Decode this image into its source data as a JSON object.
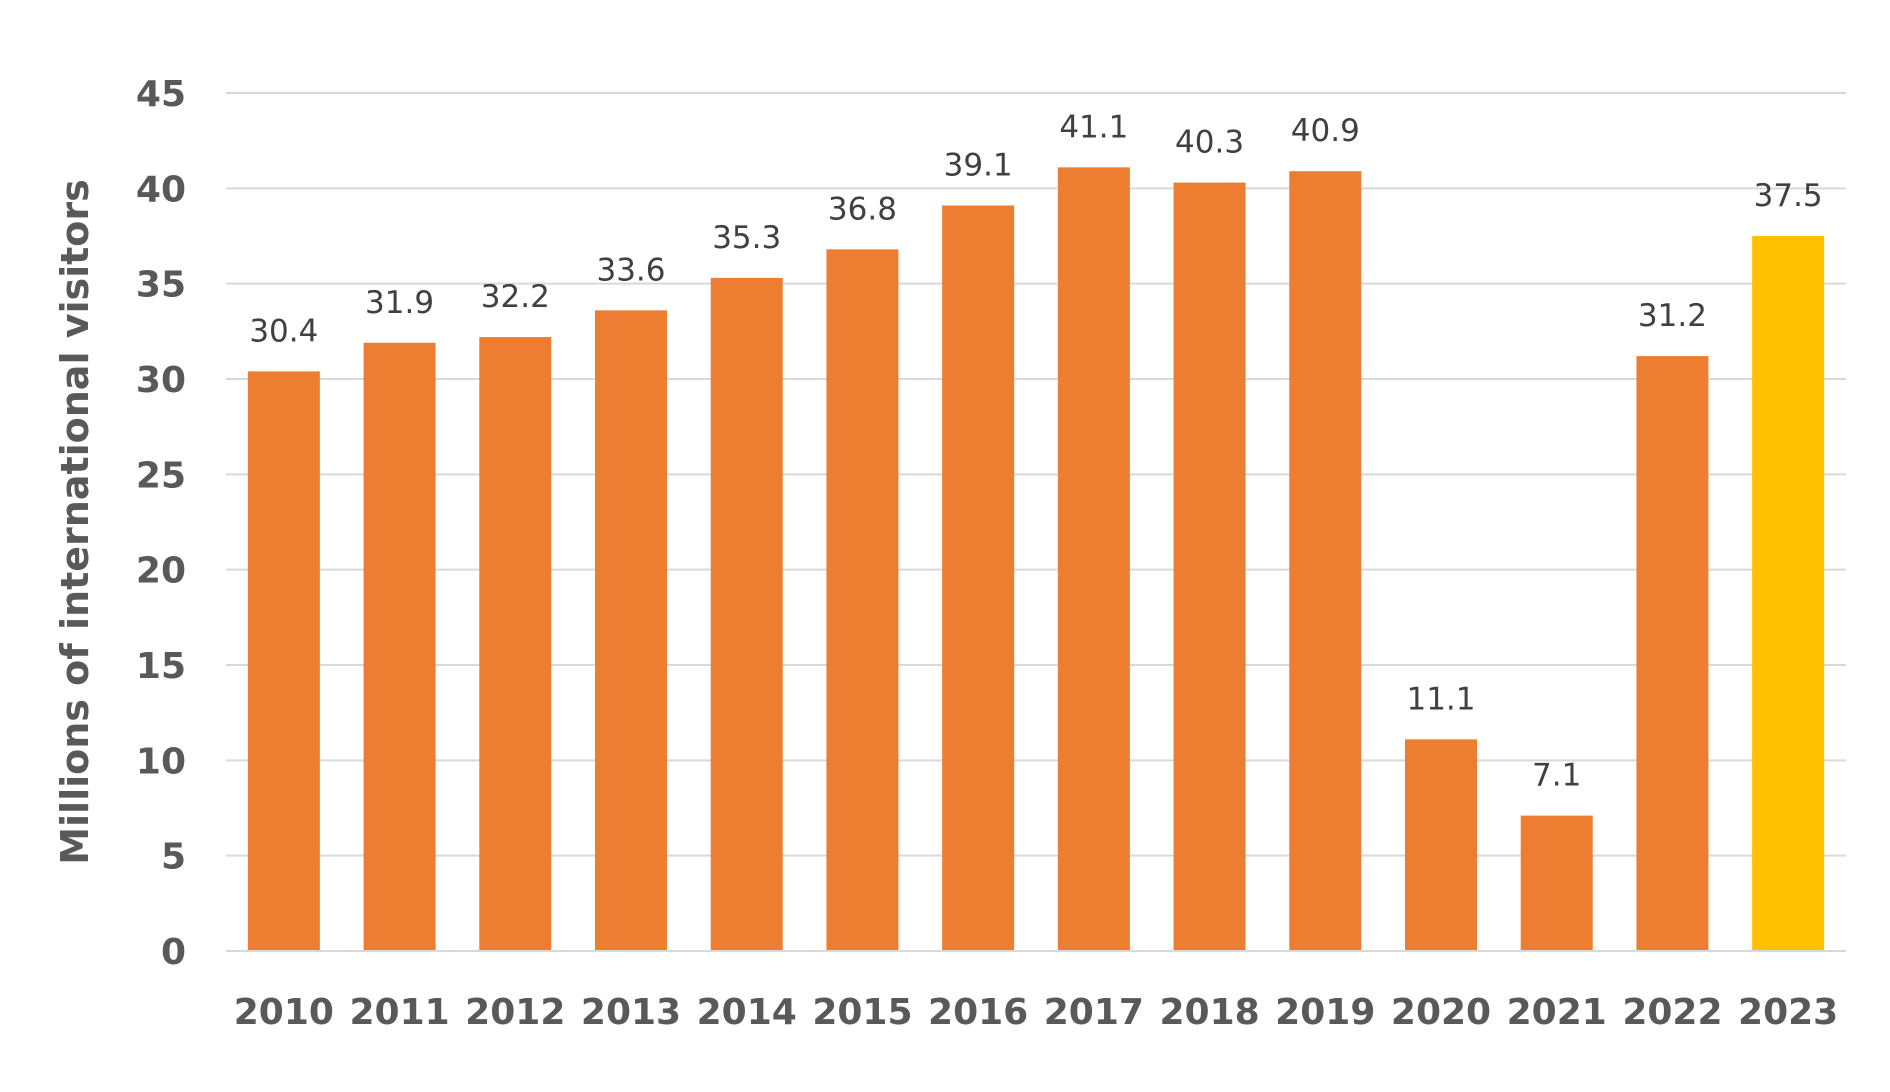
{
  "chart_data": {
    "type": "bar",
    "title": "",
    "xlabel": "",
    "ylabel": "Millions of international visitors",
    "ylim": [
      0,
      45
    ],
    "ytick_step": 5,
    "grid": true,
    "categories": [
      "2010",
      "2011",
      "2012",
      "2013",
      "2014",
      "2015",
      "2016",
      "2017",
      "2018",
      "2019",
      "2020",
      "2021",
      "2022",
      "2023"
    ],
    "values": [
      30.4,
      31.9,
      32.2,
      33.6,
      35.3,
      36.8,
      39.1,
      41.1,
      40.3,
      40.9,
      11.1,
      7.1,
      31.2,
      37.5
    ],
    "value_labels": [
      "30.4",
      "31.9",
      "32.2",
      "33.6",
      "35.3",
      "36.8",
      "39.1",
      "41.1",
      "40.3",
      "40.9",
      "11.1",
      "7.1",
      "31.2",
      "37.5"
    ],
    "bar_colors": [
      "#ED7D31",
      "#ED7D31",
      "#ED7D31",
      "#ED7D31",
      "#ED7D31",
      "#ED7D31",
      "#ED7D31",
      "#ED7D31",
      "#ED7D31",
      "#ED7D31",
      "#ED7D31",
      "#ED7D31",
      "#ED7D31",
      "#FFC000"
    ],
    "colors": {
      "grid": "#D9D9D9",
      "axis_line": "#D9D9D9",
      "tick_text": "#595959",
      "label_text": "#404040"
    }
  }
}
